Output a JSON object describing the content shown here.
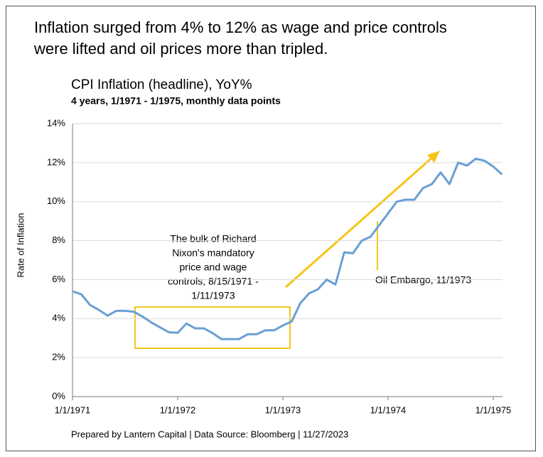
{
  "chart_data": {
    "type": "line",
    "headline": [
      "Inflation surged from 4% to 12% as wage and price controls",
      "were lifted and oil prices more than tripled."
    ],
    "title": "CPI Inflation (headline), YoY%",
    "subtitle": "4 years, 1/1971 - 1/1975, monthly data points",
    "y_label": "Rate of Inflation",
    "footer": "Prepared by Lantern Capital | Data Source: Bloomberg | 11/27/2023",
    "annotations": [
      [
        "The bulk of Richard",
        "Nixon's mandatory",
        "price and wage",
        "controls, 8/15/1971 -",
        "1/11/1973"
      ],
      "Oil Embargo, 11/1973"
    ],
    "categories": [
      "1/1/1971",
      null,
      null,
      null,
      null,
      null,
      null,
      null,
      null,
      null,
      null,
      null,
      "1/1/1972",
      null,
      null,
      null,
      null,
      null,
      null,
      null,
      null,
      null,
      null,
      null,
      "1/1/1973",
      null,
      null,
      null,
      null,
      null,
      null,
      null,
      null,
      null,
      null,
      null,
      "1/1/1974",
      null,
      null,
      null,
      null,
      null,
      null,
      null,
      null,
      null,
      null,
      null,
      "1/1/1975",
      null
    ],
    "series": [
      {
        "name": "CPI YoY",
        "color": "#6a9fd4",
        "values": [
          5.4,
          5.25,
          4.7,
          4.45,
          4.15,
          4.4,
          4.4,
          4.35,
          4.1,
          3.8,
          3.55,
          3.3,
          3.27,
          3.75,
          3.5,
          3.5,
          3.25,
          2.95,
          2.95,
          2.95,
          3.2,
          3.2,
          3.4,
          3.4,
          3.65,
          3.85,
          4.8,
          5.3,
          5.5,
          6.0,
          5.75,
          7.4,
          7.35,
          8.0,
          8.2,
          8.8,
          9.4,
          10.0,
          10.1,
          10.1,
          10.7,
          10.9,
          11.5,
          10.9,
          12.0,
          11.85,
          12.2,
          12.1,
          11.8,
          11.4
        ]
      }
    ],
    "ylim": [
      0,
      14
    ],
    "yticks": [
      {
        "value": 0,
        "label": "0%"
      },
      {
        "value": 2,
        "label": "2%"
      },
      {
        "value": 4,
        "label": "4%"
      },
      {
        "value": 6,
        "label": "6%"
      },
      {
        "value": 8,
        "label": "8%"
      },
      {
        "value": 10,
        "label": "10%"
      },
      {
        "value": 12,
        "label": "12%"
      },
      {
        "value": 14,
        "label": "14%"
      }
    ],
    "grid": true
  }
}
